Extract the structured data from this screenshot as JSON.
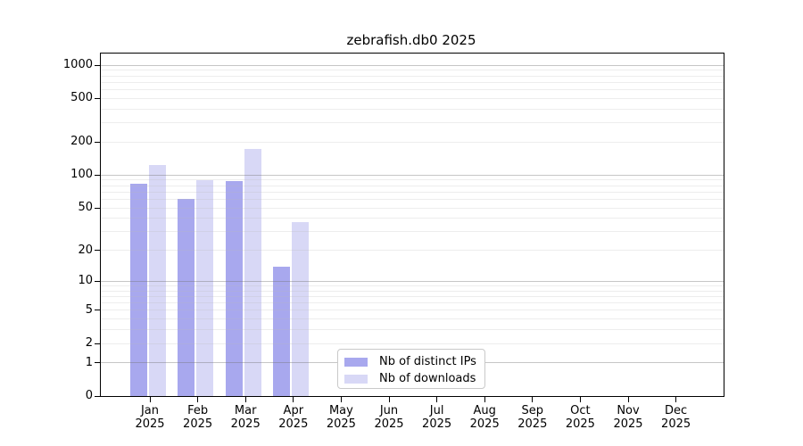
{
  "page": {
    "background": "#ffffff"
  },
  "chart_data": {
    "type": "bar",
    "title": "zebrafish.db0 2025",
    "year_label": "2025",
    "categories": [
      "Jan",
      "Feb",
      "Mar",
      "Apr",
      "May",
      "Jun",
      "Jul",
      "Aug",
      "Sep",
      "Oct",
      "Nov",
      "Dec"
    ],
    "series": [
      {
        "name": "Nb of distinct IPs",
        "color": "#a8a8ee",
        "values": [
          84,
          61,
          88,
          14,
          null,
          null,
          null,
          null,
          null,
          null,
          null,
          null
        ]
      },
      {
        "name": "Nb of downloads",
        "color": "#d8d8f6",
        "values": [
          123,
          90,
          172,
          37,
          null,
          null,
          null,
          null,
          null,
          null,
          null,
          null
        ]
      }
    ],
    "y_ticks": [
      0,
      1,
      2,
      5,
      10,
      20,
      50,
      100,
      200,
      500,
      1000
    ],
    "y_scale": "log10(1+x)",
    "ylim": [
      0,
      1300
    ],
    "xlabel": "",
    "ylabel": "",
    "grid": "horizontal",
    "grid_major_color": "#c6c6c6",
    "grid_minor_color": "#ededed",
    "axis_color": "#000000",
    "legend_position": "inside-bottom-center"
  }
}
